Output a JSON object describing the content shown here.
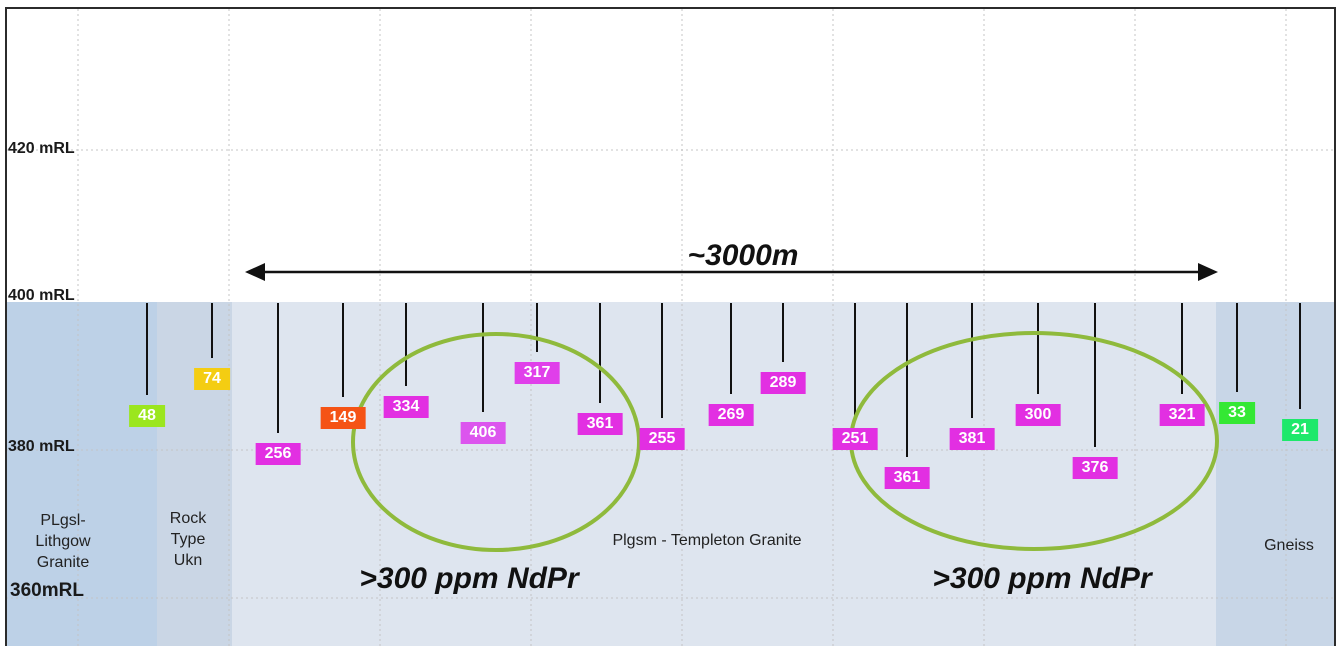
{
  "elevation_labels": [
    "420 mRL",
    "400 mRL",
    "380 mRL",
    "360mRL"
  ],
  "span": {
    "label": "~3000m"
  },
  "zones": [
    {
      "name": "PLgsl-\nLithgow\nGranite",
      "color": "#bdd1e7"
    },
    {
      "name": "Rock\nType\nUkn",
      "color": "#cad6e5"
    },
    {
      "name": "Plgsm - Templeton Granite",
      "color": "#dee5ef"
    },
    {
      "name": "Gneiss",
      "color": "#c8d6e7"
    }
  ],
  "drill_holes": [
    {
      "value": 48,
      "color": "#9be61e"
    },
    {
      "value": 74,
      "color": "#f4cd12"
    },
    {
      "value": 256,
      "color": "#e22fe2"
    },
    {
      "value": 149,
      "color": "#f55315"
    },
    {
      "value": 334,
      "color": "#e22fe2"
    },
    {
      "value": 406,
      "color": "#dc55ee"
    },
    {
      "value": 317,
      "color": "#e03fea"
    },
    {
      "value": 361,
      "color": "#e22fe2"
    },
    {
      "value": 255,
      "color": "#e22fe2"
    },
    {
      "value": 269,
      "color": "#e22fe2"
    },
    {
      "value": 289,
      "color": "#e22fe2"
    },
    {
      "value": 251,
      "color": "#e22fe2"
    },
    {
      "value": 361,
      "color": "#e22fe2"
    },
    {
      "value": 381,
      "color": "#e22fe2"
    },
    {
      "value": 300,
      "color": "#e22fe2"
    },
    {
      "value": 376,
      "color": "#e22fe2"
    },
    {
      "value": 321,
      "color": "#e22fe2"
    },
    {
      "value": 33,
      "color": "#34e834"
    },
    {
      "value": 21,
      "color": "#1ee86b"
    }
  ],
  "anomaly_zones": [
    {
      "label": ">300 ppm NdPr",
      "outline_color": "#8fba3c"
    },
    {
      "label": ">300 ppm NdPr",
      "outline_color": "#8fba3c"
    }
  ]
}
